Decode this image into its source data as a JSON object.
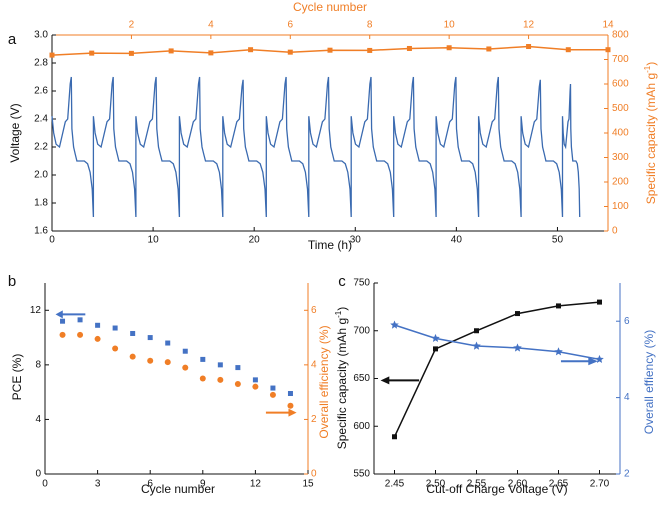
{
  "colors": {
    "blue": "#3a6ab0",
    "orange": "#f07e26",
    "black": "#111111",
    "series_blue": "#4472c4"
  },
  "chart_data": [
    {
      "panel": "a",
      "type": "line",
      "xlabel": "Time (h)",
      "xlim": [
        0,
        55
      ],
      "xticks": [
        0,
        10,
        20,
        30,
        40,
        50
      ],
      "ylabel": "Voltage (V)",
      "ylim": [
        1.6,
        3.0
      ],
      "yticks": [
        "1.6",
        "1.8",
        "2.0",
        "2.2",
        "2.4",
        "2.6",
        "2.8",
        "3.0"
      ],
      "x2label": "Cycle number",
      "x2lim": [
        0,
        14
      ],
      "x2ticks": [
        2,
        4,
        6,
        8,
        10,
        12,
        14
      ],
      "y2label": "Specific capacity (mAh g",
      "y2label_sup": "-1",
      "y2label_end": ")",
      "y2lim": [
        0,
        800
      ],
      "y2ticks": [
        0,
        100,
        200,
        300,
        400,
        500,
        600,
        700,
        800
      ],
      "voltage_cycles": {
        "starts": [
          0,
          4.1,
          8.3,
          12.6,
          16.9,
          21.2,
          25.4,
          29.6,
          33.8,
          38.0,
          42.2,
          46.4,
          50.5
        ],
        "peaks": [
          2.7,
          2.7,
          2.7,
          2.7,
          2.68,
          2.7,
          2.7,
          2.7,
          2.7,
          2.7,
          2.7,
          2.68,
          2.65
        ],
        "charge_plateau": 2.4,
        "discharge_plateau": 2.1,
        "cutoff_low": 1.7,
        "end_time": 52.2
      },
      "series": [
        {
          "name": "Specific capacity",
          "axis": "y2",
          "x": [
            0,
            1,
            2,
            3,
            4,
            5,
            6,
            7,
            8,
            9,
            10,
            11,
            12,
            13,
            14
          ],
          "values": [
            718,
            726,
            725,
            735,
            727,
            740,
            730,
            738,
            737,
            745,
            748,
            743,
            753,
            740,
            740
          ]
        }
      ]
    },
    {
      "panel": "b",
      "type": "scatter",
      "xlabel": "Cycle number",
      "xlim": [
        0,
        15
      ],
      "xticks": [
        0,
        3,
        6,
        9,
        12,
        15
      ],
      "ylabel": "PCE (%)",
      "ylim": [
        0,
        14
      ],
      "yticks": [
        0,
        4,
        8,
        12
      ],
      "y2label": "Overall efficiency (%)",
      "y2lim": [
        0,
        7
      ],
      "y2ticks": [
        0,
        2,
        4,
        6
      ],
      "series": [
        {
          "name": "PCE",
          "axis": "y",
          "marker": "square",
          "x": [
            1,
            2,
            3,
            4,
            5,
            6,
            7,
            8,
            9,
            10,
            11,
            12,
            13,
            14
          ],
          "values": [
            11.2,
            11.3,
            10.9,
            10.7,
            10.3,
            10.0,
            9.6,
            9.0,
            8.4,
            8.0,
            7.8,
            6.9,
            6.3,
            5.9
          ]
        },
        {
          "name": "Overall efficiency",
          "axis": "y2",
          "marker": "circle",
          "x": [
            1,
            2,
            3,
            4,
            5,
            6,
            7,
            8,
            9,
            10,
            11,
            12,
            13,
            14
          ],
          "values": [
            5.1,
            5.1,
            4.95,
            4.6,
            4.3,
            4.15,
            4.1,
            3.9,
            3.5,
            3.45,
            3.3,
            3.2,
            2.9,
            2.5
          ]
        }
      ]
    },
    {
      "panel": "c",
      "type": "line",
      "xlabel": "Cut-off Charge Voltage (V)",
      "xlim": [
        2.425,
        2.725
      ],
      "xticks": [
        "2.45",
        "2.50",
        "2.55",
        "2.60",
        "2.65",
        "2.70"
      ],
      "ylabel": "Specific capacity (mAh g",
      "ylabel_sup": "-1",
      "ylabel_end": ")",
      "ylim": [
        550,
        750
      ],
      "yticks": [
        550,
        600,
        650,
        700,
        750
      ],
      "y2label": "Overall effiency (%)",
      "y2lim": [
        2,
        7
      ],
      "y2ticks": [
        2,
        4,
        6
      ],
      "series": [
        {
          "name": "Specific capacity",
          "axis": "y",
          "marker": "square",
          "x": [
            2.45,
            2.5,
            2.55,
            2.6,
            2.65,
            2.7
          ],
          "values": [
            589,
            681,
            700,
            718,
            726,
            730
          ]
        },
        {
          "name": "Overall effiency",
          "axis": "y2",
          "marker": "star",
          "x": [
            2.45,
            2.5,
            2.55,
            2.6,
            2.65,
            2.7
          ],
          "values": [
            5.9,
            5.55,
            5.35,
            5.3,
            5.2,
            5.0
          ]
        }
      ]
    }
  ]
}
